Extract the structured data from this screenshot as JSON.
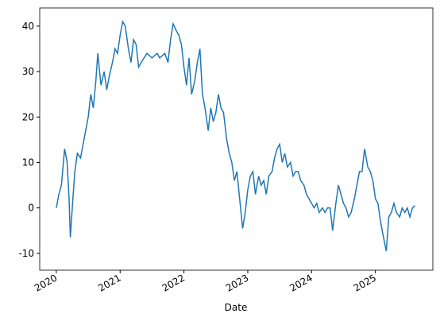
{
  "chart_data": {
    "type": "line",
    "x_label": "Date",
    "x": [
      2020.0,
      2020.04,
      2020.08,
      2020.13,
      2020.17,
      2020.2,
      2020.22,
      2020.25,
      2020.29,
      2020.33,
      2020.38,
      2020.42,
      2020.46,
      2020.5,
      2020.54,
      2020.58,
      2020.62,
      2020.65,
      2020.7,
      2020.75,
      2020.79,
      2020.83,
      2020.88,
      2020.92,
      2020.96,
      2021.0,
      2021.04,
      2021.08,
      2021.13,
      2021.17,
      2021.21,
      2021.25,
      2021.29,
      2021.33,
      2021.42,
      2021.5,
      2021.58,
      2021.62,
      2021.7,
      2021.75,
      2021.79,
      2021.83,
      2021.88,
      2021.92,
      2021.96,
      2022.0,
      2022.04,
      2022.08,
      2022.12,
      2022.17,
      2022.21,
      2022.25,
      2022.29,
      2022.33,
      2022.38,
      2022.42,
      2022.46,
      2022.5,
      2022.54,
      2022.58,
      2022.62,
      2022.67,
      2022.71,
      2022.75,
      2022.79,
      2022.83,
      2022.88,
      2022.92,
      2022.96,
      2023.0,
      2023.04,
      2023.08,
      2023.12,
      2023.17,
      2023.21,
      2023.25,
      2023.29,
      2023.33,
      2023.38,
      2023.42,
      2023.46,
      2023.5,
      2023.54,
      2023.58,
      2023.62,
      2023.67,
      2023.71,
      2023.75,
      2023.79,
      2023.83,
      2023.88,
      2023.92,
      2023.96,
      2024.0,
      2024.04,
      2024.08,
      2024.12,
      2024.17,
      2024.21,
      2024.25,
      2024.29,
      2024.33,
      2024.38,
      2024.42,
      2024.46,
      2024.5,
      2024.54,
      2024.58,
      2024.62,
      2024.67,
      2024.71,
      2024.75,
      2024.79,
      2024.83,
      2024.88,
      2024.92,
      2024.96,
      2025.0,
      2025.04,
      2025.08,
      2025.12,
      2025.17,
      2025.21,
      2025.25,
      2025.29,
      2025.33,
      2025.38,
      2025.42,
      2025.46,
      2025.5,
      2025.54,
      2025.58,
      2025.62
    ],
    "values": [
      0,
      3,
      5,
      13,
      10,
      2,
      -6.5,
      0,
      8,
      12,
      11,
      14,
      17,
      20,
      25,
      22,
      28,
      34,
      27,
      30,
      26,
      29,
      32,
      35,
      34,
      38,
      41,
      40,
      35,
      32,
      37,
      36,
      31,
      32,
      34,
      33,
      34,
      33,
      34,
      32,
      37,
      40.5,
      39,
      38,
      36,
      31,
      27,
      33,
      25,
      28,
      32,
      35,
      25,
      22,
      17,
      22,
      19,
      21,
      25,
      22,
      21,
      15,
      12,
      10,
      6,
      8,
      1,
      -4.5,
      -1,
      4,
      7,
      8,
      3,
      7,
      5,
      6,
      3,
      7,
      8,
      11,
      13,
      14,
      10,
      12,
      9,
      10,
      7,
      8,
      8,
      6,
      5,
      3,
      2,
      1,
      0,
      1,
      -1,
      0,
      -1,
      0,
      0,
      -5,
      1,
      5,
      3,
      1,
      0,
      -2,
      -1,
      2,
      5,
      8,
      8,
      13,
      9,
      8,
      6,
      2,
      1,
      -3,
      -6,
      -9.5,
      -2,
      -1,
      1,
      -1,
      -2,
      0,
      -1,
      0,
      -2,
      0,
      0.5
    ],
    "color": "#1f77b4",
    "xlim": [
      2019.74,
      2025.9
    ],
    "xticks": [
      2020,
      2021,
      2022,
      2023,
      2024,
      2025
    ],
    "ylim": [
      -13.7,
      44
    ],
    "yticks": [
      -10,
      0,
      10,
      20,
      30,
      40
    ]
  }
}
